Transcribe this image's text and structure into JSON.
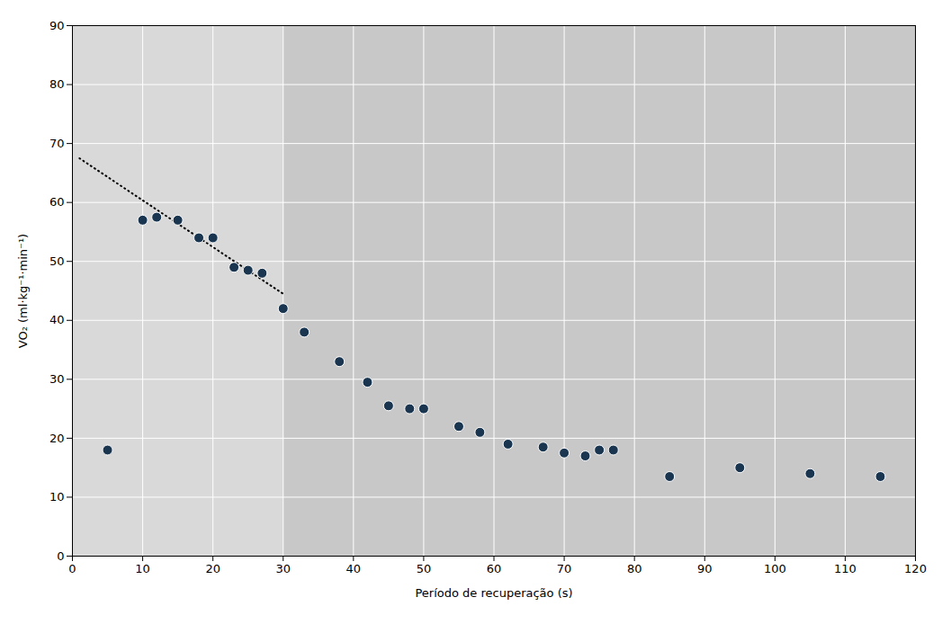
{
  "chart_data": {
    "type": "scatter",
    "xlabel": "Período de recuperação (s)",
    "ylabel": "VO₂ (ml·kg⁻¹·min⁻¹)",
    "xlim": [
      0,
      120
    ],
    "ylim": [
      0,
      90
    ],
    "xticks": [
      0,
      10,
      20,
      30,
      40,
      50,
      60,
      70,
      80,
      90,
      100,
      110,
      120
    ],
    "yticks": [
      0,
      10,
      20,
      30,
      40,
      50,
      60,
      70,
      80,
      90
    ],
    "grid": true,
    "regions": [
      {
        "x1": 0,
        "x2": 30,
        "color": "#d9d9d9"
      },
      {
        "x1": 30,
        "x2": 120,
        "color": "#c8c8c8"
      }
    ],
    "series": [
      {
        "type": "line",
        "line_style": "dotted",
        "color": "#000000",
        "x": [
          1,
          30
        ],
        "values": [
          67.5,
          44.5
        ]
      },
      {
        "type": "scatter",
        "marker": "circle",
        "color": "#1a3550",
        "x": [
          5,
          10,
          12,
          15,
          18,
          20,
          23,
          25,
          27,
          30,
          33,
          38,
          42,
          45,
          48,
          50,
          55,
          58,
          62,
          67,
          70,
          73,
          75,
          77,
          85,
          95,
          105,
          115
        ],
        "values": [
          18,
          57,
          57.5,
          57,
          54,
          54,
          49,
          48.5,
          48,
          42,
          38,
          33,
          29.5,
          25.5,
          25,
          25,
          22,
          21,
          19,
          18.5,
          17.5,
          17,
          18,
          18,
          13.5,
          15,
          14,
          13.5
        ]
      }
    ]
  }
}
